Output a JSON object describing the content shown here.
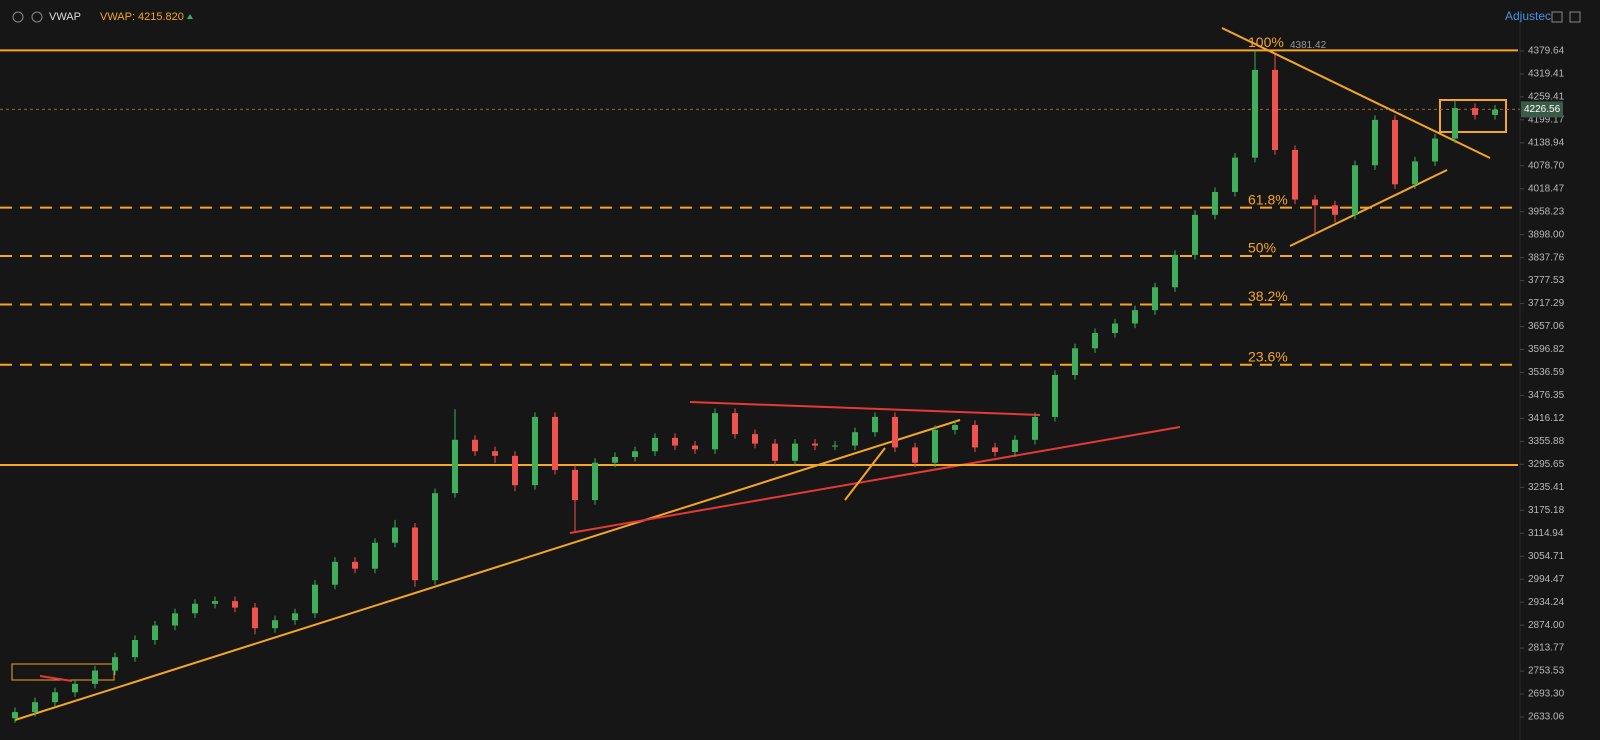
{
  "header": {
    "indicator": "VWAP",
    "indicator_label": "VWAP:",
    "indicator_value": {
      "value": 4215.82,
      "label": "4215.820"
    },
    "right_button": "Adjustec"
  },
  "chart_data": {
    "type": "candlestick",
    "open": [
      2630,
      2646,
      2672,
      2698,
      2720,
      2755,
      2790,
      2835,
      2873,
      2905,
      2930,
      2937,
      2920,
      2866,
      2887,
      2905,
      2980,
      3040,
      3022,
      3090,
      3130,
      2992,
      3220,
      3360,
      3330,
      3318,
      3241,
      3420,
      3281,
      3202,
      3300,
      3315,
      3330,
      3365,
      3345,
      3335,
      3430,
      3375,
      3350,
      3305,
      3350,
      3345,
      3345,
      3380,
      3420,
      3340,
      3300,
      3386,
      3399,
      3340,
      3328,
      3360,
      3420,
      3530,
      3600,
      3640,
      3665,
      3700,
      3760,
      3845,
      3950,
      4010,
      4100,
      4330,
      4120,
      3990,
      3975,
      3950,
      4080,
      4199,
      4030,
      4090,
      4150,
      4230,
      4212
    ],
    "high": [
      2658,
      2684,
      2710,
      2732,
      2767,
      2802,
      2847,
      2885,
      2917,
      2942,
      2949,
      2949,
      2932,
      2899,
      2917,
      2992,
      3052,
      3052,
      3102,
      3150,
      3142,
      3232,
      3440,
      3372,
      3342,
      3330,
      3432,
      3432,
      3293,
      3312,
      3327,
      3342,
      3377,
      3377,
      3357,
      3442,
      3442,
      3387,
      3362,
      3362,
      3362,
      3357,
      3392,
      3432,
      3432,
      3352,
      3398,
      3411,
      3411,
      3352,
      3372,
      3432,
      3542,
      3612,
      3652,
      3677,
      3712,
      3772,
      3857,
      3962,
      4022,
      4112,
      4381,
      4370,
      4132,
      4002,
      3987,
      4092,
      4211,
      4211,
      4102,
      4162,
      4250,
      4242,
      4238
    ],
    "low": [
      2618,
      2634,
      2660,
      2686,
      2708,
      2743,
      2778,
      2823,
      2861,
      2893,
      2918,
      2908,
      2850,
      2854,
      2875,
      2893,
      2968,
      3010,
      3010,
      3078,
      2975,
      2980,
      3208,
      3318,
      3300,
      3225,
      3229,
      3269,
      3120,
      3190,
      3288,
      3303,
      3318,
      3333,
      3323,
      3323,
      3363,
      3338,
      3293,
      3293,
      3333,
      3333,
      3333,
      3368,
      3328,
      3288,
      3288,
      3374,
      3328,
      3316,
      3316,
      3348,
      3408,
      3518,
      3588,
      3628,
      3653,
      3688,
      3748,
      3833,
      3938,
      3998,
      4088,
      4108,
      3978,
      3900,
      3930,
      3938,
      4068,
      4018,
      4018,
      4078,
      4138,
      4200,
      4200
    ],
    "close": [
      2646,
      2672,
      2698,
      2720,
      2755,
      2790,
      2835,
      2873,
      2905,
      2930,
      2937,
      2920,
      2866,
      2887,
      2905,
      2980,
      3040,
      3022,
      3090,
      3130,
      2992,
      3220,
      3360,
      3330,
      3318,
      3241,
      3420,
      3281,
      3202,
      3300,
      3315,
      3330,
      3365,
      3345,
      3335,
      3430,
      3375,
      3350,
      3305,
      3350,
      3345,
      3345,
      3380,
      3420,
      3340,
      3300,
      3386,
      3399,
      3340,
      3328,
      3360,
      3420,
      3530,
      3600,
      3640,
      3665,
      3700,
      3760,
      3845,
      3950,
      4010,
      4100,
      4330,
      4120,
      3990,
      3975,
      3950,
      4080,
      4199,
      4030,
      4090,
      4150,
      4230,
      4212,
      4226
    ],
    "up_color": "#3fae5a",
    "down_color": "#ef5350",
    "ylim": [
      2612.1,
      4455.7
    ],
    "yticks": [
      4379.64,
      4319.41,
      4259.41,
      4199.17,
      4138.94,
      {
        "value": 4078.7,
        "label": "4078.70"
      },
      4018.47,
      3958.23,
      {
        "value": 3898,
        "label": "3898.00"
      },
      3837.76,
      3777.53,
      3717.29,
      3657.06,
      3596.82,
      3536.59,
      3476.35,
      3416.12,
      3355.88,
      3295.65,
      3235.41,
      3175.18,
      3114.94,
      3054.71,
      2994.47,
      2934.24,
      {
        "value": 2874,
        "label": "2874.00"
      },
      2813.77,
      2753.53,
      {
        "value": 2693.3,
        "label": "2693.30"
      },
      2633.06
    ],
    "grid": false,
    "last_price": 4226.56,
    "fib_levels": [
      {
        "label": "100%",
        "value": 4381.42,
        "style": "solid"
      },
      {
        "label": "61.8%",
        "value": 3969,
        "style": "dashed"
      },
      {
        "label": "50%",
        "value": 3842,
        "style": "dashed"
      },
      {
        "label": "38.2%",
        "value": 3715,
        "style": "dashed"
      },
      {
        "label": "23.6%",
        "value": 3557,
        "style": "dashed"
      }
    ],
    "horizontal_lines": [
      3294
    ],
    "level_color": "#f5a623"
  }
}
